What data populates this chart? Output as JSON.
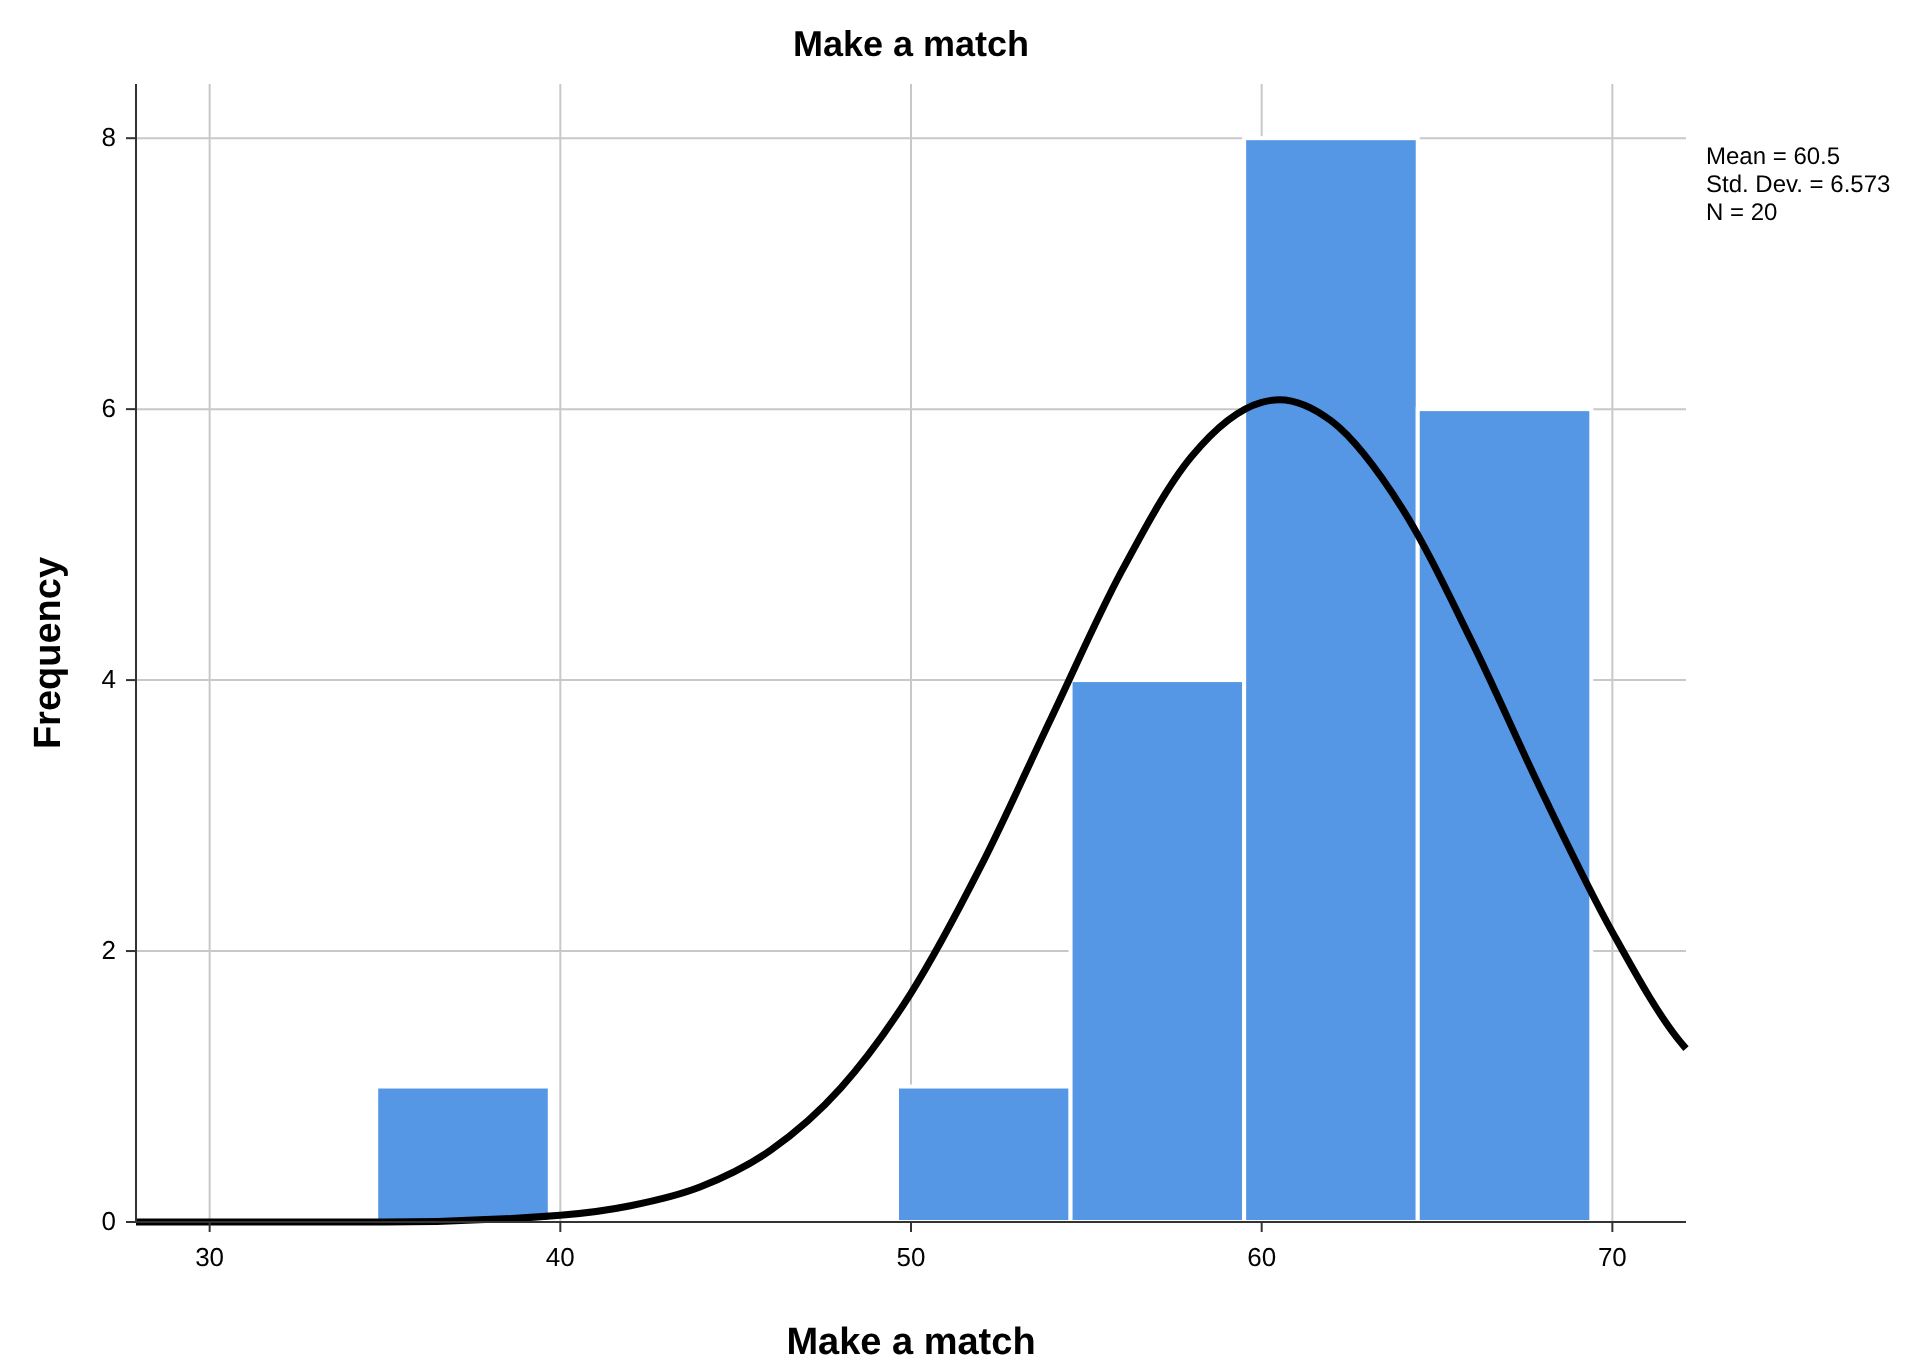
{
  "chart_data": {
    "type": "histogram",
    "title": "Make a match",
    "xlabel": "Make a match",
    "ylabel": "Frequency",
    "bins": [
      34.75,
      39.7,
      44.65,
      49.6,
      54.55,
      59.5,
      64.45,
      69.4
    ],
    "series": [
      {
        "color": "#5596e5",
        "values": [
          1,
          0,
          0,
          1,
          4,
          8,
          6
        ]
      },
      {
        "type": "line",
        "color": "#000000",
        "x": [
          27.9,
          35,
          40,
          42,
          44,
          46,
          48,
          50,
          52,
          54,
          56,
          58,
          60,
          60.5,
          62,
          64,
          66,
          68,
          70,
          72,
          72.1
        ],
        "values": [
          0,
          0,
          0.05,
          0.12,
          0.26,
          0.53,
          0.99,
          1.69,
          2.63,
          3.72,
          4.8,
          5.65,
          6.05,
          6.07,
          5.91,
          5.27,
          4.28,
          3.17,
          2.14,
          1.31,
          1.28
        ]
      }
    ],
    "xlim": [
      27.9,
      72.1
    ],
    "ylim": [
      0,
      8.4
    ],
    "xticks": [
      30,
      40,
      50,
      60,
      70
    ],
    "yticks": [
      0,
      2,
      4,
      6,
      8
    ],
    "grid": true,
    "annotations": [
      "Mean = 60.5",
      "Std. Dev. = 6.573",
      "N = 20"
    ]
  }
}
